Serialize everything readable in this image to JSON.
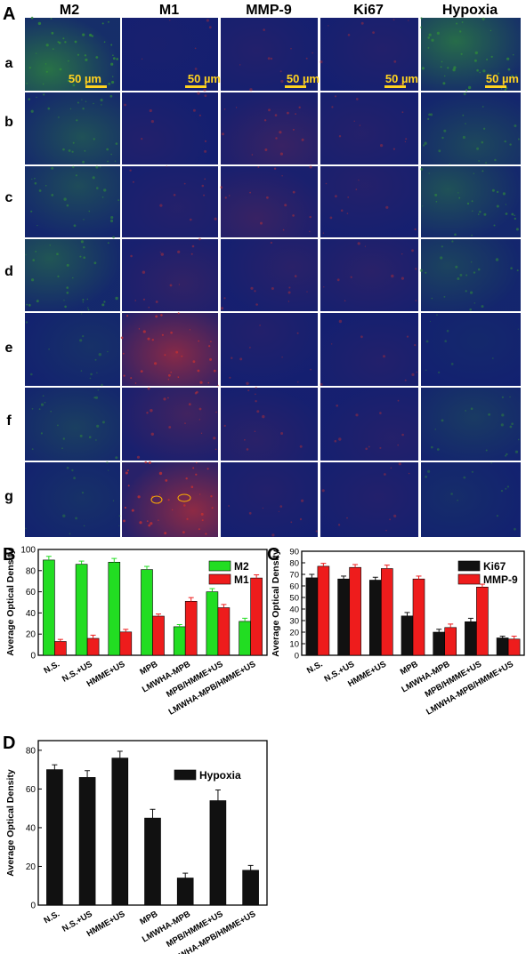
{
  "panel_letters": [
    "A",
    "B",
    "C",
    "D"
  ],
  "micrograph_grid": {
    "column_headers": [
      "M2",
      "M1",
      "MMP-9",
      "Ki67",
      "Hypoxia"
    ],
    "row_labels": [
      "a",
      "b",
      "c",
      "d",
      "e",
      "f",
      "g"
    ],
    "scale_bar_label": "50 µm",
    "stain_colors": {
      "M2": "#2f8a3a",
      "M1": "#c83030",
      "MMP-9": "#c83030",
      "Ki67": "#c83030",
      "Hypoxia": "#2f8a3a",
      "nuclei": "#1a2a8c"
    },
    "relative_signal": [
      [
        0.9,
        0.05,
        0.1,
        0.1,
        0.85
      ],
      [
        0.55,
        0.1,
        0.25,
        0.12,
        0.45
      ],
      [
        0.5,
        0.12,
        0.25,
        0.12,
        0.55
      ],
      [
        0.6,
        0.2,
        0.15,
        0.15,
        0.4
      ],
      [
        0.2,
        0.75,
        0.1,
        0.1,
        0.1
      ],
      [
        0.35,
        0.3,
        0.15,
        0.12,
        0.3
      ],
      [
        0.2,
        0.8,
        0.1,
        0.1,
        0.15
      ]
    ]
  },
  "chart_data": [
    {
      "panel": "B",
      "type": "bar",
      "categories": [
        "N.S.",
        "N.S.+US",
        "HMME+US",
        "MPB",
        "LMWHA-MPB",
        "MPB/HMME+US",
        "LMWHA-MPB/HMME+US"
      ],
      "series": [
        {
          "name": "M2",
          "color": "#22dd22",
          "values": [
            90,
            86,
            88,
            81,
            27,
            60,
            32
          ],
          "errors": [
            3.5,
            3,
            3.5,
            3,
            2,
            3,
            3
          ]
        },
        {
          "name": "M1",
          "color": "#ee1c1c",
          "values": [
            13,
            16,
            22,
            37,
            51,
            45,
            73
          ],
          "errors": [
            2,
            3,
            2.5,
            2,
            3.5,
            3,
            3
          ]
        }
      ],
      "xlabel": "",
      "ylabel": "Average Optical Density",
      "ylim": [
        0,
        100
      ],
      "yticks": [
        0,
        20,
        40,
        60,
        80,
        100
      ],
      "legend_position": "top-right"
    },
    {
      "panel": "C",
      "type": "bar",
      "categories": [
        "N.S.",
        "N.S.+US",
        "HMME+US",
        "MPB",
        "LMWHA-MPB",
        "MPB/HMME+US",
        "LMWHA-MPB/HMME+US"
      ],
      "series": [
        {
          "name": "Ki67",
          "color": "#111111",
          "values": [
            67,
            66,
            65,
            34,
            20,
            29,
            15
          ],
          "errors": [
            3,
            2.5,
            2.5,
            3,
            2.5,
            3,
            1.5
          ]
        },
        {
          "name": "MMP-9",
          "color": "#ee1c1c",
          "values": [
            77,
            76,
            75,
            66,
            24,
            59,
            14
          ],
          "errors": [
            2.5,
            2.5,
            3,
            2.5,
            3,
            2.5,
            2.5
          ]
        }
      ],
      "xlabel": "",
      "ylabel": "Average Optical Density",
      "ylim": [
        0,
        90
      ],
      "yticks": [
        0,
        10,
        20,
        30,
        40,
        50,
        60,
        70,
        80,
        90
      ],
      "legend_position": "top-right"
    },
    {
      "panel": "D",
      "type": "bar",
      "categories": [
        "N.S.",
        "N.S.+US",
        "HMME+US",
        "MPB",
        "LMWHA-MPB",
        "MPB/HMME+US",
        "LMWHA-MPB/HMME+US"
      ],
      "series": [
        {
          "name": "Hypoxia",
          "color": "#111111",
          "values": [
            70,
            66,
            76,
            45,
            14,
            54,
            18
          ],
          "errors": [
            2.5,
            3.5,
            3.5,
            4.5,
            2.5,
            5.5,
            2.5
          ]
        }
      ],
      "xlabel": "",
      "ylabel": "Average Optical Density",
      "ylim": [
        0,
        85
      ],
      "yticks": [
        0,
        20,
        40,
        60,
        80
      ],
      "legend_position": "top-center"
    }
  ]
}
